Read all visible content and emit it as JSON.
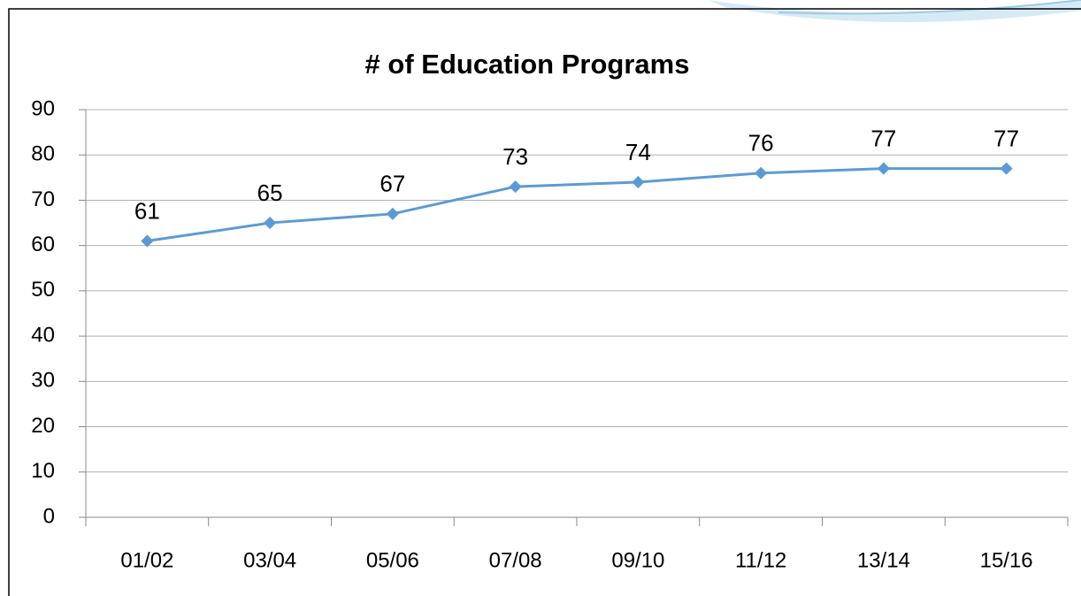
{
  "chart_data": {
    "type": "line",
    "title": "# of Education Programs",
    "categories": [
      "01/02",
      "03/04",
      "05/06",
      "07/08",
      "09/10",
      "11/12",
      "13/14",
      "15/16"
    ],
    "series": [
      {
        "name": "# of Education Programs",
        "color": "#5b9bd5",
        "values": [
          61,
          65,
          67,
          73,
          74,
          76,
          77,
          77
        ]
      }
    ],
    "ylim": [
      0,
      90
    ],
    "yticks": [
      0,
      10,
      20,
      30,
      40,
      50,
      60,
      70,
      80,
      90
    ],
    "grid": true
  }
}
